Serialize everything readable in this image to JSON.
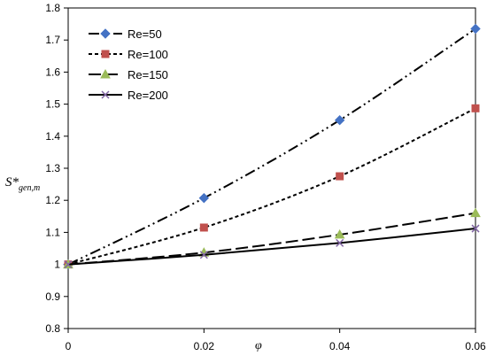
{
  "chart_data": {
    "type": "line",
    "title": "",
    "xlabel": "φ",
    "ylabel_main": "S*",
    "ylabel_sub": "gen,m",
    "xlim": [
      0,
      0.06
    ],
    "ylim": [
      0.8,
      1.8
    ],
    "x_ticks": [
      0,
      0.02,
      0.04,
      0.06
    ],
    "x_tick_labels": [
      "0",
      "0.02",
      "0.04",
      "0.06"
    ],
    "y_ticks": [
      0.8,
      0.9,
      1.0,
      1.1,
      1.2,
      1.3,
      1.4,
      1.5,
      1.6,
      1.7,
      1.8
    ],
    "y_tick_labels": [
      "0.8",
      "0.9",
      "1",
      "1.1",
      "1.2",
      "1.3",
      "1.4",
      "1.5",
      "1.6",
      "1.7",
      "1.8"
    ],
    "grid": false,
    "legend_position": "top-left",
    "series": [
      {
        "name": "Re=50",
        "x": [
          0,
          0.02,
          0.04,
          0.06
        ],
        "values": [
          1.0,
          1.207,
          1.45,
          1.735
        ],
        "color": "#4472C4",
        "marker": "diamond",
        "line_style": "dash-dot-dot"
      },
      {
        "name": "Re=100",
        "x": [
          0,
          0.02,
          0.04,
          0.06
        ],
        "values": [
          1.0,
          1.115,
          1.275,
          1.487
        ],
        "color": "#C0504D",
        "marker": "square",
        "line_style": "dashed-short"
      },
      {
        "name": "Re=150",
        "x": [
          0,
          0.02,
          0.04,
          0.06
        ],
        "values": [
          1.0,
          1.037,
          1.093,
          1.16
        ],
        "color": "#9BBB59",
        "marker": "triangle",
        "line_style": "dashed-long"
      },
      {
        "name": "Re=200",
        "x": [
          0,
          0.02,
          0.04,
          0.06
        ],
        "values": [
          1.0,
          1.03,
          1.067,
          1.112
        ],
        "color": "#8064A2",
        "marker": "x",
        "line_style": "solid"
      }
    ]
  }
}
